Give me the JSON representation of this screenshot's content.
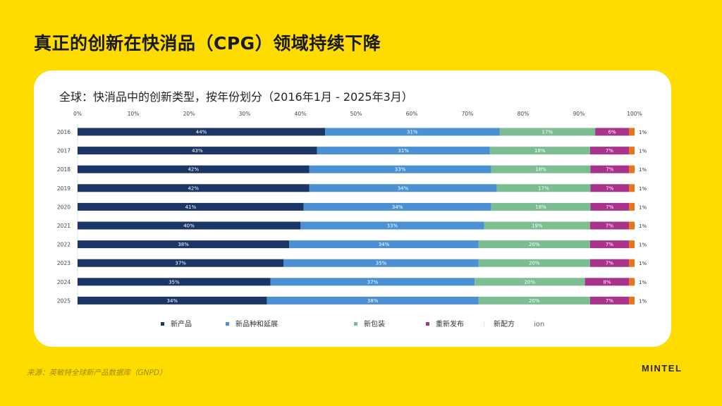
{
  "header": {
    "title": "真正的创新在快消品（CPG）领域持续下降"
  },
  "footer": {
    "source": "来源：英敏特全球新产品数据库（GNPD）",
    "brand": "MINTEL"
  },
  "chart_data": {
    "type": "bar",
    "orientation": "horizontal",
    "stacked": true,
    "title": "全球：快消品中的创新类型，按年份划分（2016年1月 - 2025年3月）",
    "xlabel": "",
    "ylabel": "",
    "xlim": [
      0,
      100
    ],
    "x_ticks": [
      "0%",
      "10%",
      "20%",
      "30%",
      "40%",
      "50%",
      "60%",
      "70%",
      "80%",
      "90%",
      "100%"
    ],
    "categories": [
      "2016",
      "2017",
      "2018",
      "2019",
      "2020",
      "2021",
      "2022",
      "2023",
      "2024",
      "2025"
    ],
    "legend_position": "bottom",
    "series": [
      {
        "name": "新产品",
        "color": "#1B3565",
        "values": [
          44,
          43,
          42,
          42,
          41,
          40,
          38,
          37,
          35,
          34
        ],
        "labels": [
          "44%",
          "43%",
          "42%",
          "42%",
          "41%",
          "40%",
          "38%",
          "37%",
          "35%",
          "34%"
        ]
      },
      {
        "name": "新品种和延展",
        "color": "#4A90D2",
        "values": [
          31,
          31,
          33,
          34,
          34,
          33,
          34,
          35,
          37,
          38
        ],
        "labels": [
          "31%",
          "31%",
          "33%",
          "34%",
          "34%",
          "33%",
          "34%",
          "35%",
          "37%",
          "38%"
        ]
      },
      {
        "name": "新包装",
        "color": "#7DBD94",
        "values": [
          17,
          18,
          18,
          17,
          18,
          19,
          20,
          20,
          20,
          20
        ],
        "labels": [
          "17%",
          "18%",
          "18%",
          "17%",
          "18%",
          "19%",
          "20%",
          "20%",
          "20%",
          "20%"
        ]
      },
      {
        "name": "重新发布",
        "color": "#A8338A",
        "values": [
          6,
          7,
          7,
          7,
          7,
          7,
          7,
          7,
          8,
          7
        ],
        "labels": [
          "6%",
          "7%",
          "7%",
          "7%",
          "7%",
          "7%",
          "7%",
          "7%",
          "8%",
          "7%"
        ]
      },
      {
        "name": "新配方",
        "color": "#E8731E",
        "values": [
          1,
          1,
          1,
          1,
          1,
          1,
          1,
          1,
          1,
          1
        ],
        "labels": [
          "1%",
          "1%",
          "1%",
          "1%",
          "1%",
          "1%",
          "1%",
          "1%",
          "1%",
          "1%"
        ]
      }
    ],
    "legend_extra_text": "ion"
  }
}
